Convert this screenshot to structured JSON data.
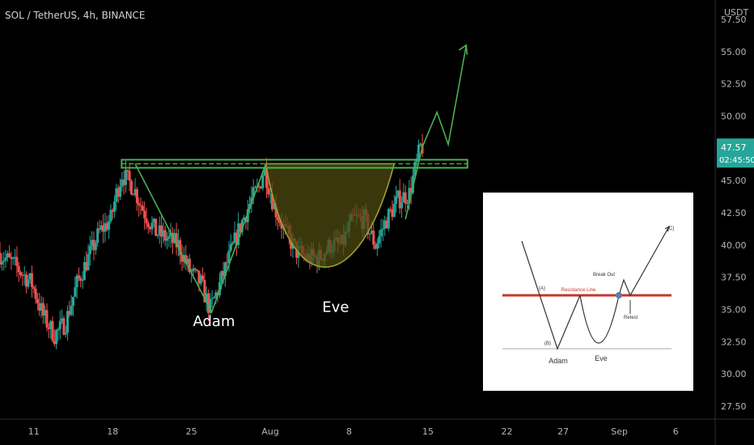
{
  "header": {
    "symbol": "SOL / TetherUS, 4h, BINANCE"
  },
  "price_scale": {
    "currency": "USDT",
    "current_price": "47.57",
    "countdown": "02:45:50",
    "current_label_color": "#26a69a"
  },
  "colors": {
    "up": "#26a69a",
    "down": "#ef5350",
    "pattern_line": "#4caf50",
    "cup_fill": "#4d4a12",
    "cup_stroke": "#a0a034",
    "resistance": "#4caf50"
  },
  "chart_data": {
    "type": "candlestick",
    "symbol": "SOL / TetherUS",
    "interval": "4h",
    "exchange": "BINANCE",
    "y_ticks": [
      57.5,
      55.0,
      52.5,
      50.0,
      47.5,
      45.0,
      42.5,
      40.0,
      37.5,
      35.0,
      32.5,
      30.0,
      27.5
    ],
    "y_tick_labels": [
      "57.50",
      "55.00",
      "52.50",
      "50.00",
      "47.50",
      "45.00",
      "42.50",
      "40.00",
      "37.50",
      "35.00",
      "32.50",
      "30.00",
      "27.50"
    ],
    "ylim": [
      26.5,
      59.0
    ],
    "x_ticks": [
      {
        "label": "11",
        "day": 11
      },
      {
        "label": "18",
        "day": 18
      },
      {
        "label": "25",
        "day": 25
      },
      {
        "label": "Aug",
        "day": 32
      },
      {
        "label": "8",
        "day": 39
      },
      {
        "label": "15",
        "day": 46
      },
      {
        "label": "22",
        "day": 53
      },
      {
        "label": "27",
        "day": 58
      },
      {
        "label": "Sep",
        "day": 63
      },
      {
        "label": "6",
        "day": 68
      }
    ],
    "xlim": [
      8.0,
      71.5
    ],
    "resistance_level": 46.3,
    "price_path": [
      [
        8.0,
        39.4
      ],
      [
        9.5,
        38.4
      ],
      [
        11.0,
        37.0
      ],
      [
        12.0,
        34.5
      ],
      [
        13.0,
        33.0
      ],
      [
        14.0,
        34.0
      ],
      [
        15.0,
        37.0
      ],
      [
        16.0,
        39.0
      ],
      [
        17.0,
        41.0
      ],
      [
        18.0,
        42.0
      ],
      [
        18.5,
        44.0
      ],
      [
        19.0,
        45.5
      ],
      [
        19.5,
        45.0
      ],
      [
        20.0,
        44.5
      ],
      [
        21.0,
        42.5
      ],
      [
        22.0,
        41.0
      ],
      [
        23.0,
        40.5
      ],
      [
        24.0,
        40.0
      ],
      [
        25.0,
        38.0
      ],
      [
        26.0,
        37.0
      ],
      [
        26.8,
        35.0
      ],
      [
        27.5,
        36.5
      ],
      [
        28.5,
        39.0
      ],
      [
        29.5,
        41.5
      ],
      [
        30.5,
        43.5
      ],
      [
        31.2,
        44.5
      ],
      [
        31.6,
        46.0
      ],
      [
        32.5,
        43.0
      ],
      [
        33.5,
        41.0
      ],
      [
        34.5,
        39.5
      ],
      [
        35.5,
        39.0
      ],
      [
        36.5,
        39.0
      ],
      [
        37.5,
        40.0
      ],
      [
        38.5,
        40.0
      ],
      [
        39.5,
        42.0
      ],
      [
        40.5,
        42.0
      ],
      [
        41.5,
        40.0
      ],
      [
        42.5,
        42.0
      ],
      [
        43.5,
        43.5
      ],
      [
        44.5,
        44.0
      ],
      [
        45.5,
        47.6
      ]
    ],
    "pattern_line": [
      [
        20.0,
        46.3
      ],
      [
        26.8,
        34.8
      ],
      [
        31.6,
        46.3
      ]
    ],
    "cup_curve": {
      "start_day": 31.6,
      "end_day": 43.0,
      "top": 46.3,
      "bottom": 37.5
    },
    "projection": [
      [
        44.0,
        42.0
      ],
      [
        45.5,
        47.6
      ],
      [
        46.8,
        50.3
      ],
      [
        47.8,
        47.8
      ],
      [
        49.4,
        55.5
      ]
    ],
    "annotations": [
      {
        "text": "Adam",
        "day": 27.0,
        "value": 33.7
      },
      {
        "text": "Eve",
        "day": 37.8,
        "value": 34.8
      }
    ],
    "inset": {
      "labels": {
        "resistance": "Resistance Line",
        "breakout": "Break Out",
        "retest": "Retest",
        "a": "(A)",
        "b": "(B)",
        "c": "(C)",
        "adam": "Adam",
        "eve": "Eve"
      }
    }
  }
}
